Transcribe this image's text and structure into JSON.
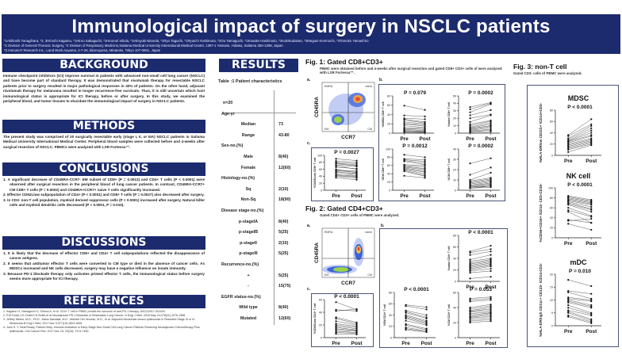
{
  "header": {
    "title": "Immunological impact of surgery in NSCLC patients",
    "authors": "*1Akihoshi Yanagihara, *2, 3Hiroshi Kagamu, *1Hiroo Sakaguchi, *1Hironori Ishida, *1Hiroyuki Nitanda,  *1Ryo Taguchi, *1Ryuichi Yoshimura, *2Ou Yamaguchi, *2Kosuke Hashimoto, *2KokiKodairao, *3Meguni Kenmochi, *3Tomoko Yamashiro",
    "affiliation1": "*1 Division of General Thoracic Surgery, *2 Division of Respiratory Medicine,Saitama Medical University International Medical Center, 1397-1 Yamane, Hidaka, Saitama 350-1298, Japan",
    "affiliation2": "*3 ImmunoT Research Inc., Land Work Aoyama, 2-7-26, kitaAoyama, Minatoku, Tokyo 107-0061, Japan"
  },
  "background": {
    "heading": "BACKGROUND",
    "text": "Immune checkpoint inhibitors (ICI) improve survival in patients with advanced non-small cell lung cancer (NSCLC) and have become part of standard therapy. It was demonstrated that nivolumab therapy for resectable NSCLC patients prior to surgery resulted in major pathological responses in 40% of patients. On the other hand, adjuvant nivolumab therapy for melanoma resulted in longer recurrence-free survivals. Thus, it is still uncertain which host immunological status is appropriate for ICI therapy, before or after surgery. In this study, we examined the peripheral blood, and tumor tissues to elucidate the immunological impact of surgery in NSCLC patients."
  },
  "methods": {
    "heading": "METHODS",
    "text": "The present study was comprised of 20 surgically resectable early (stage I, II, or IIIA) NSCLC patients in Saitama Medical University International Medical Center. Peripheral blood samples were collected before and 4-weeks after surgical resection of NSCLC. PBMCs were analyzed with LSR Fortessa™."
  },
  "conclusions": {
    "heading": "CONCLUSIONS",
    "items": [
      "1. A significant decrease of CD45RA-CCR7- EM subset of CD8+ (P = 0.0012) and CD4+ T cells (P < 0.0001) were observed after surgical resection in the peripheral blood of lung cancer patients. In contrast, CD45RA-CCR7+ CM CD8+ T cells (P = 0.0002) and CD45RA+CCR7+ naive T cells significantly increased.",
      "2. Effector CD62Llow subpopulation of CD4+ (P < 0.0001) and CD8+ T cells (P = 0.0027) also decreased after surgery.",
      "3. In CD3- non-T cell population, myeloid derived suppressor cells (P < 0.0001) increased after surgery. Natural killer cells and myeloid dendritic cells decreased (P < 0.0001, P = 0.010)."
    ]
  },
  "discussions": {
    "heading": "DISCUSSIONS",
    "items": [
      "1. It is likely that the decrease of effector CD8+ and CD4+ T cell subpopulations reflected the disappearance of cancer antigens.",
      "2. It seems that antitumor effector T cells were converted to CM type or died in the absence of cancer cells. As MDSCs increased and NK cells decreased, surgery may have a negative influence on innate immunity.",
      "3. Because PD-1 blockade therapy only activates primed effector T cells, the immunological status before surgery seems more appropriate for ICI therapy."
    ]
  },
  "references": {
    "heading": "REFERENCES",
    "items": [
      "1.  Kagamu H, Yamaguchi O, Shiono A, et al. CD4+ T cell in PBMC predict the outcome of anti-PD-1 therapy. ASCO2017 #11525.",
      "2.  P.M.Forde,J.E.Chaft,K.N.Smith,et al.Neoadjuvant PD-1 Blockade in Resectable Lung Cancer. N Engl J Med. 2018 May 24;378(21):1976-1986.",
      "3.  Jeffrey Weber, M.D., Ph.D., Mario Mandala, M.D., Michele Del Vecchio, M.D., et al. Adjuvant Nivolumab versus Ipilimumab in Resected Stage III or IV Melanoma.N Engl J Med. 2017 Nov 9;377(19):1824-1835.",
      "4.  John S. Y, Neal Ready, Patrick Hetty. Immune Activation in Early-Stage Non-Small Cell Lung Cancer Patients Receiving Neoadjuvant Chemotherapy Plus Ipilimumab. Clin Cancer Res. 2017 Dec 15; 23(24): 7474-7482."
    ]
  },
  "results": {
    "heading": "RESULTS",
    "table_title": "Table :1 Patient characteristics",
    "rows": [
      {
        "label": "n=20",
        "value": "",
        "kind": "h"
      },
      {
        "label": "Age-yr",
        "value": "",
        "kind": "cat"
      },
      {
        "label": "Median",
        "value": "73",
        "kind": "sub"
      },
      {
        "label": "Range",
        "value": "43-80",
        "kind": "sub"
      },
      {
        "label": "Sex-no.(%)",
        "value": "",
        "kind": "cat"
      },
      {
        "label": "Male",
        "value": "8(40)",
        "kind": "sub"
      },
      {
        "label": "Female",
        "value": "12(60)",
        "kind": "sub"
      },
      {
        "label": "Histology-no.(%)",
        "value": "",
        "kind": "cat"
      },
      {
        "label": "Sq",
        "value": "2(10)",
        "kind": "sub"
      },
      {
        "label": "Non-Sq",
        "value": "18(90)",
        "kind": "sub"
      },
      {
        "label": "Disease stage-no.(%)",
        "value": "",
        "kind": "cat"
      },
      {
        "label": "p-stageIA",
        "value": "8(40)",
        "kind": "sub"
      },
      {
        "label": "p-stageIB",
        "value": "5(25)",
        "kind": "sub"
      },
      {
        "label": "p-stageII",
        "value": "2(10)",
        "kind": "sub"
      },
      {
        "label": "p-stageIII",
        "value": "5(25)",
        "kind": "sub"
      },
      {
        "label": "Recurrence-no.(%)",
        "value": "",
        "kind": "cat"
      },
      {
        "label": "+",
        "value": "5(25)",
        "kind": "sub"
      },
      {
        "label": "-",
        "value": "15(75)",
        "kind": "sub"
      },
      {
        "label": "EGFR status-no.(%)",
        "value": "",
        "kind": "cat"
      },
      {
        "label": "Wild type",
        "value": "8(40)",
        "kind": "sub"
      },
      {
        "label": "Mutated",
        "value": "12(60)",
        "kind": "sub"
      }
    ]
  },
  "fig1": {
    "title": "Fig. 1: Gated CD8+CD3+",
    "subtitle": "PBMC were obtained before and 4-weeks after surgical resection and gated CD8+ CD3+ cells of were analyzed with LSR Fortessa™.",
    "panel_a": "a.",
    "panel_b": "b.",
    "panel_c": "c."
  },
  "fig2": {
    "title": "Fig. 2: Gated CD4+CD3+",
    "subtitle": "Gated CD4+ CD3+ cells of PBMC were analyzed.",
    "panel_a": "a.",
    "panel_b": "b.",
    "panel_c": "c."
  },
  "fig3": {
    "title": "Fig. 3: non-T cell",
    "subtitle": "Gated CD3- cells of PBMC were analyzed."
  },
  "flow": {
    "xlabel": "CCR7",
    "ylabel": "CD45RA",
    "quadrants": [
      "EMRA",
      "naive",
      "EM",
      "CM"
    ]
  },
  "chart_data": [
    {
      "id": "fig1c",
      "type": "line",
      "title": "",
      "p": "P = 0.0027",
      "ylabel": "%CD62Llow CD8+ T cell",
      "x": [
        "Pre",
        "Post"
      ],
      "ylim": [
        0,
        100
      ],
      "yticks": [
        0,
        20,
        40,
        60,
        80,
        100
      ],
      "pairs": [
        [
          90,
          85
        ],
        [
          84,
          80
        ],
        [
          80,
          76
        ],
        [
          78,
          72
        ],
        [
          76,
          70
        ],
        [
          72,
          68
        ],
        [
          70,
          60
        ],
        [
          66,
          62
        ],
        [
          60,
          50
        ],
        [
          58,
          55
        ],
        [
          56,
          52
        ],
        [
          54,
          45
        ],
        [
          52,
          48
        ],
        [
          48,
          42
        ],
        [
          44,
          40
        ],
        [
          42,
          38
        ],
        [
          40,
          35
        ],
        [
          36,
          30
        ]
      ]
    },
    {
      "id": "fig1b1",
      "type": "line",
      "p": "P = 0.079",
      "ylabel": "%EMRA CD8+ T cell",
      "x": [
        "Pre",
        "Post"
      ],
      "ylim": [
        0,
        80
      ],
      "yticks": [
        0,
        20,
        40,
        60,
        80
      ],
      "pairs": [
        [
          59,
          50
        ],
        [
          38,
          36
        ],
        [
          32,
          30
        ],
        [
          30,
          24
        ],
        [
          28,
          22
        ],
        [
          24,
          20
        ],
        [
          20,
          18
        ],
        [
          20,
          15
        ],
        [
          16,
          12
        ],
        [
          12,
          10
        ],
        [
          10,
          8
        ],
        [
          8,
          6
        ],
        [
          6,
          4
        ],
        [
          5,
          3
        ],
        [
          3,
          2
        ],
        [
          2,
          1
        ]
      ]
    },
    {
      "id": "fig1b2",
      "type": "line",
      "p": "P = 0.0002",
      "ylabel": "%naive CD8+ T cell",
      "x": [
        "Pre",
        "Post"
      ],
      "ylim": [
        0,
        50
      ],
      "yticks": [
        0,
        10,
        20,
        30,
        40,
        50
      ],
      "pairs": [
        [
          35,
          41
        ],
        [
          32,
          40
        ],
        [
          28,
          39
        ],
        [
          24,
          31
        ],
        [
          20,
          25
        ],
        [
          15,
          24
        ],
        [
          12,
          17
        ],
        [
          10,
          16
        ],
        [
          8,
          14
        ],
        [
          7,
          12
        ],
        [
          6,
          10
        ],
        [
          5,
          9
        ],
        [
          4,
          7
        ],
        [
          3,
          5
        ],
        [
          2,
          4
        ],
        [
          1,
          2
        ]
      ]
    },
    {
      "id": "fig1b3",
      "type": "line",
      "p": "P = 0.0012",
      "ylabel": "%EM CD8+ T cell",
      "x": [
        "Pre",
        "Post"
      ],
      "ylim": [
        0,
        100
      ],
      "yticks": [
        0,
        20,
        40,
        60,
        80,
        100
      ],
      "pairs": [
        [
          86,
          80
        ],
        [
          76,
          74
        ],
        [
          74,
          70
        ],
        [
          72,
          66
        ],
        [
          70,
          62
        ],
        [
          62,
          60
        ],
        [
          60,
          56
        ],
        [
          58,
          52
        ],
        [
          56,
          50
        ],
        [
          54,
          46
        ],
        [
          52,
          44
        ],
        [
          50,
          40
        ],
        [
          48,
          36
        ],
        [
          46,
          34
        ],
        [
          35,
          30
        ]
      ]
    },
    {
      "id": "fig1b4",
      "type": "line",
      "p": "P = 0.0002",
      "ylabel": "%CM CD8+ T cell",
      "x": [
        "Pre",
        "Post"
      ],
      "ylim": [
        0,
        40
      ],
      "yticks": [
        0,
        10,
        20,
        30,
        40
      ],
      "pairs": [
        [
          26,
          31
        ],
        [
          15,
          22
        ],
        [
          10,
          17
        ],
        [
          9,
          12
        ],
        [
          8,
          11
        ],
        [
          7,
          10
        ],
        [
          6,
          9
        ],
        [
          5,
          8
        ],
        [
          4,
          7
        ],
        [
          4,
          6
        ],
        [
          3,
          5
        ],
        [
          3,
          4
        ],
        [
          2,
          4
        ],
        [
          2,
          3
        ]
      ]
    },
    {
      "id": "fig2c",
      "type": "line",
      "p": "P < 0.0001",
      "ylabel": "%CD62Llow CD4+ T cell",
      "x": [
        "Pre",
        "Post"
      ],
      "ylim": [
        0,
        60
      ],
      "yticks": [
        0,
        20,
        40,
        60
      ],
      "pairs": [
        [
          56,
          44
        ],
        [
          44,
          42
        ],
        [
          42,
          45
        ],
        [
          32,
          24
        ],
        [
          30,
          22
        ],
        [
          26,
          20
        ],
        [
          22,
          18
        ],
        [
          20,
          16
        ],
        [
          18,
          14
        ],
        [
          16,
          12
        ],
        [
          14,
          11
        ],
        [
          12,
          10
        ],
        [
          10,
          8
        ],
        [
          8,
          7
        ],
        [
          6,
          5
        ]
      ]
    },
    {
      "id": "fig2b1",
      "type": "line",
      "p": "P < 0.0001",
      "ylabel": "%naive CD4+ T cell",
      "x": [
        "Pre",
        "Post"
      ],
      "ylim": [
        0,
        80
      ],
      "yticks": [
        0,
        20,
        40,
        60,
        80
      ],
      "pairs": [
        [
          52,
          62
        ],
        [
          50,
          56
        ],
        [
          46,
          52
        ],
        [
          38,
          46
        ],
        [
          35,
          40
        ],
        [
          32,
          38
        ],
        [
          30,
          36
        ],
        [
          28,
          34
        ],
        [
          26,
          32
        ],
        [
          24,
          30
        ],
        [
          22,
          28
        ],
        [
          20,
          26
        ],
        [
          18,
          22
        ],
        [
          15,
          18
        ],
        [
          5,
          8
        ]
      ]
    },
    {
      "id": "fig2b2",
      "type": "line",
      "p": "P < 0.0001",
      "ylabel": "%EM CD4+ T cell",
      "x": [
        "Pre",
        "Post"
      ],
      "ylim": [
        0,
        80
      ],
      "yticks": [
        0,
        20,
        40,
        60,
        80
      ],
      "pairs": [
        [
          58,
          54
        ],
        [
          56,
          50
        ],
        [
          48,
          40
        ],
        [
          46,
          36
        ],
        [
          44,
          34
        ],
        [
          40,
          30
        ],
        [
          38,
          28
        ],
        [
          36,
          26
        ],
        [
          34,
          24
        ],
        [
          30,
          22
        ],
        [
          24,
          16
        ],
        [
          22,
          14
        ],
        [
          18,
          12
        ],
        [
          16,
          10
        ],
        [
          14,
          10
        ]
      ]
    },
    {
      "id": "fig2b3",
      "type": "line",
      "p": "P = 0.053",
      "ylabel": "%CM CD4+ T cell",
      "x": [
        "Pre",
        "Post"
      ],
      "ylim": [
        0,
        60
      ],
      "yticks": [
        0,
        20,
        40,
        60
      ],
      "pairs": [
        [
          52,
          54
        ],
        [
          50,
          52
        ],
        [
          48,
          50
        ],
        [
          40,
          44
        ],
        [
          38,
          42
        ],
        [
          36,
          40
        ],
        [
          35,
          38
        ],
        [
          34,
          36
        ],
        [
          32,
          34
        ],
        [
          30,
          33
        ],
        [
          28,
          32
        ],
        [
          27,
          30
        ],
        [
          26,
          28
        ],
        [
          24,
          26
        ],
        [
          22,
          24
        ],
        [
          20,
          22
        ]
      ]
    },
    {
      "id": "mdsc",
      "type": "line",
      "title": "MDSC",
      "p": "P < 0.0001",
      "ylabel": "%HLA-DRlow CD11b+ /CD14+CD3-",
      "x": [
        "Pre",
        "Post"
      ],
      "ylim": [
        0,
        80
      ],
      "yticks": [
        0,
        20,
        40,
        60,
        80
      ],
      "pairs": [
        [
          36,
          64
        ],
        [
          34,
          55
        ],
        [
          30,
          52
        ],
        [
          28,
          48
        ],
        [
          26,
          44
        ],
        [
          25,
          40
        ],
        [
          24,
          36
        ],
        [
          22,
          34
        ],
        [
          20,
          30
        ],
        [
          18,
          28
        ],
        [
          16,
          26
        ],
        [
          14,
          24
        ],
        [
          12,
          22
        ],
        [
          10,
          20
        ],
        [
          6,
          18
        ]
      ]
    },
    {
      "id": "nk",
      "type": "line",
      "title": "NK cell",
      "p": "P < 0.0001",
      "ylabel": "%CD56+CD16+ /CD14- CD3-CD19-",
      "x": [
        "Pre",
        "Post"
      ],
      "ylim": [
        0,
        100
      ],
      "yticks": [
        0,
        20,
        40,
        60,
        80,
        100
      ],
      "pairs": [
        [
          84,
          76
        ],
        [
          82,
          74
        ],
        [
          80,
          72
        ],
        [
          78,
          70
        ],
        [
          76,
          68
        ],
        [
          74,
          66
        ],
        [
          72,
          62
        ],
        [
          70,
          58
        ],
        [
          68,
          56
        ],
        [
          66,
          52
        ],
        [
          60,
          44
        ],
        [
          55,
          42
        ],
        [
          52,
          30
        ],
        [
          36,
          30
        ],
        [
          34,
          38
        ],
        [
          28,
          16
        ]
      ]
    },
    {
      "id": "mdc",
      "type": "line",
      "title": "mDC",
      "p": "P = 0.010",
      "ylabel": "%HLA-DRhigh CD11c+ CD123- /CD14-CD3-",
      "x": [
        "Pre",
        "Post"
      ],
      "ylim": [
        0,
        20
      ],
      "yticks": [
        0,
        5,
        10,
        15,
        20
      ],
      "pairs": [
        [
          17.8,
          15.4
        ],
        [
          13.5,
          12.4
        ],
        [
          13,
          10.5
        ],
        [
          11,
          10
        ],
        [
          10.5,
          9.5
        ],
        [
          10,
          8
        ],
        [
          9.5,
          7.5
        ],
        [
          9,
          7
        ],
        [
          8,
          5
        ],
        [
          7,
          4.5
        ],
        [
          6,
          4
        ],
        [
          5.5,
          2.5
        ],
        [
          5,
          2
        ],
        [
          4,
          1.5
        ],
        [
          3.5,
          1
        ]
      ]
    }
  ]
}
